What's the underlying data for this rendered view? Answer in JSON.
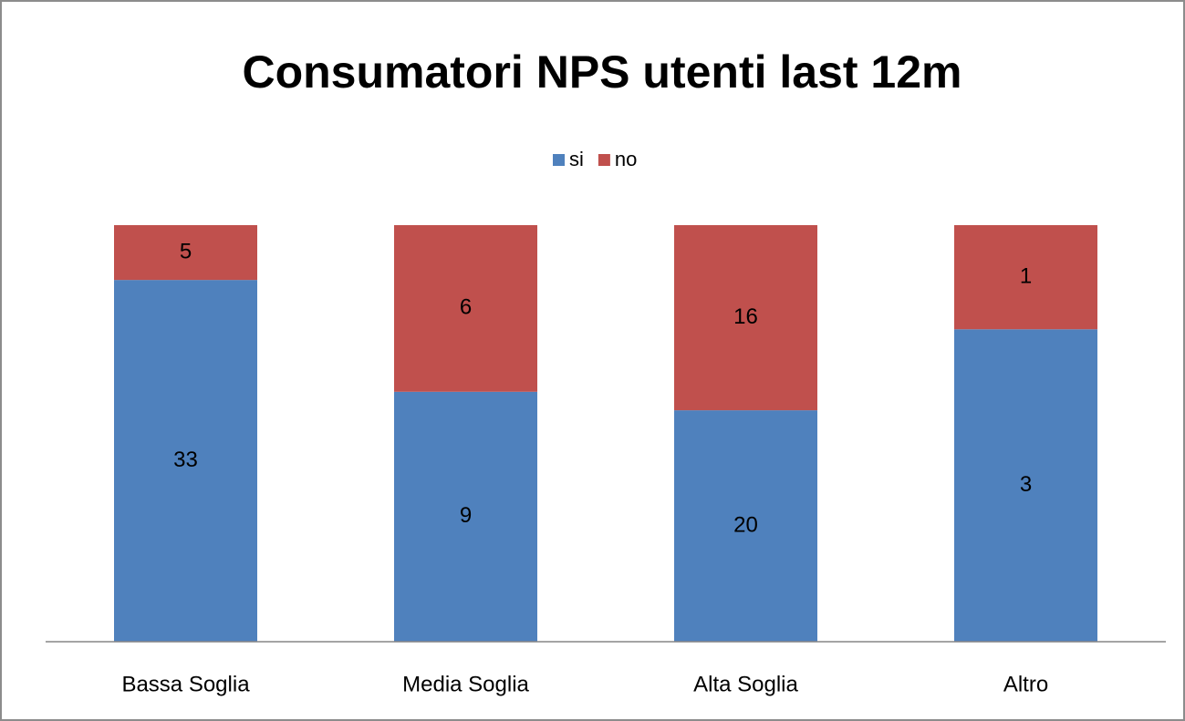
{
  "chart_data": {
    "type": "bar",
    "stacking": "percent",
    "title": "Consumatori NPS utenti last 12m",
    "categories": [
      "Bassa Soglia",
      "Media Soglia",
      "Alta Soglia",
      "Altro"
    ],
    "series": [
      {
        "name": "si",
        "color": "#4f81bd",
        "values": [
          33,
          9,
          20,
          3
        ]
      },
      {
        "name": "no",
        "color": "#c0504d",
        "values": [
          5,
          6,
          16,
          1
        ]
      }
    ],
    "legend": "top"
  }
}
